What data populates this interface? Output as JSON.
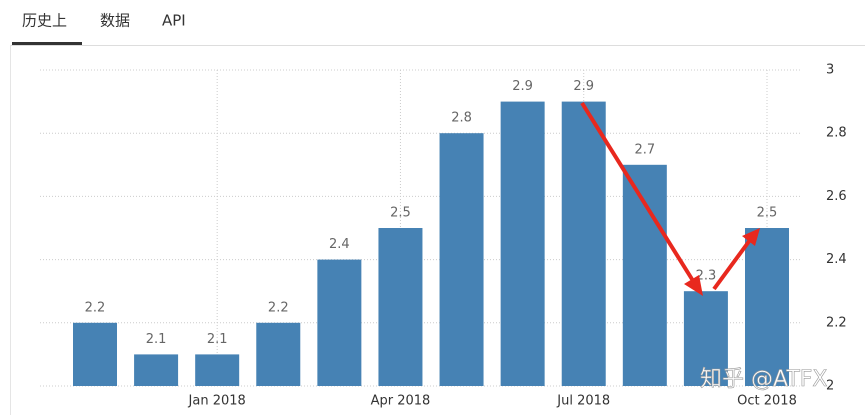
{
  "tabs": [
    "历史上",
    "数据",
    "API"
  ],
  "chart_data": {
    "type": "bar",
    "categories": [
      null,
      null,
      "Jan 2018",
      null,
      null,
      "Apr 2018",
      null,
      null,
      "Jul 2018",
      null,
      null,
      "Oct 2018"
    ],
    "values": [
      2.2,
      2.1,
      2.1,
      2.2,
      2.4,
      2.5,
      2.8,
      2.9,
      2.9,
      2.7,
      2.3,
      2.5
    ],
    "color": "#4682b4",
    "ylim": [
      2,
      3
    ],
    "yticks": [
      2,
      2.2,
      2.4,
      2.6,
      2.8,
      3
    ],
    "grid": true,
    "annotations": [
      "知乎 @ATFX"
    ]
  }
}
